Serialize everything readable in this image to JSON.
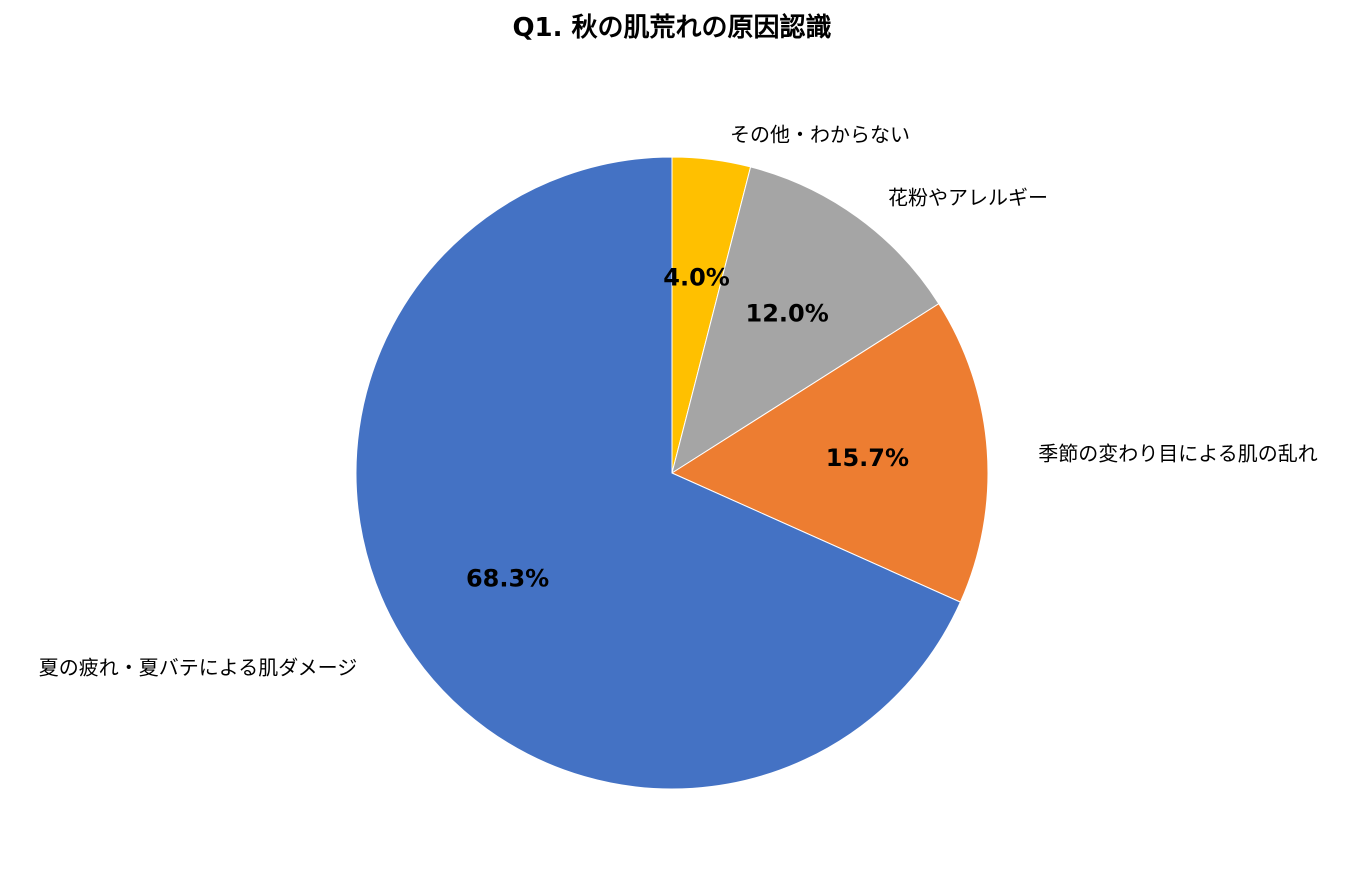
{
  "chart_data": {
    "type": "pie",
    "title": "Q1. 秋の肌荒れの原因認識",
    "start_angle_deg": 0,
    "direction": "clockwise",
    "slices": [
      {
        "label": "その他・わからない",
        "value": 4.0,
        "percent_label": "4.0%",
        "color": "#FFC000"
      },
      {
        "label": "花粉やアレルギー",
        "value": 12.0,
        "percent_label": "12.0%",
        "color": "#A5A5A5"
      },
      {
        "label": "季節の変わり目による肌の乱れ",
        "value": 15.7,
        "percent_label": "15.7%",
        "color": "#ED7D31"
      },
      {
        "label": "夏の疲れ・夏バテによる肌ダメージ",
        "value": 68.3,
        "percent_label": "68.3%",
        "color": "#4472C4"
      }
    ]
  }
}
